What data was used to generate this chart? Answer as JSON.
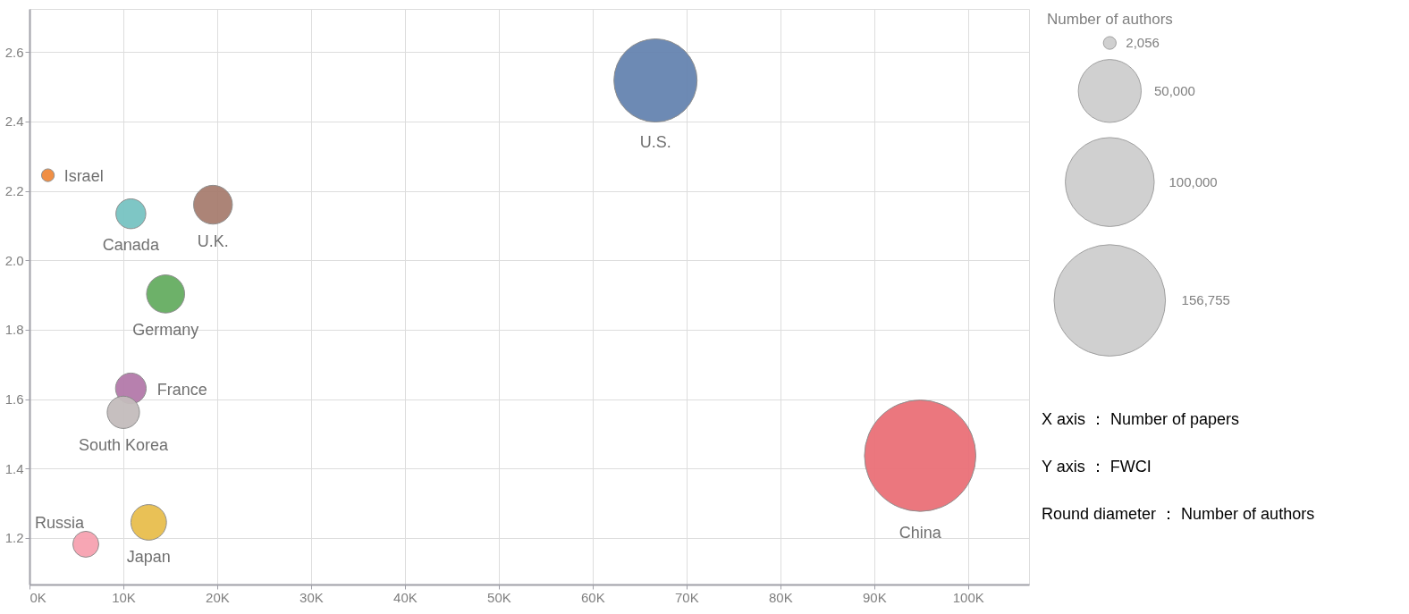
{
  "chart_data": {
    "type": "bubble",
    "legend_title": "Number of authors",
    "size_legend": [
      {
        "value": 2056,
        "label": "2,056"
      },
      {
        "value": 50000,
        "label": "50,000"
      },
      {
        "value": 100000,
        "label": "100,000"
      },
      {
        "value": 156755,
        "label": "156,755"
      }
    ],
    "annotations": [
      "X axis ： Number of papers",
      "Y axis ： FWCI",
      "Round diameter ： Number of authors"
    ],
    "xlim": [
      0,
      106500
    ],
    "ylim": [
      1.066,
      2.724
    ],
    "xticks": [
      {
        "value": 0,
        "label": "0K"
      },
      {
        "value": 10000,
        "label": "10K"
      },
      {
        "value": 20000,
        "label": "20K"
      },
      {
        "value": 30000,
        "label": "30K"
      },
      {
        "value": 40000,
        "label": "40K"
      },
      {
        "value": 50000,
        "label": "50K"
      },
      {
        "value": 60000,
        "label": "60K"
      },
      {
        "value": 70000,
        "label": "70K"
      },
      {
        "value": 80000,
        "label": "80K"
      },
      {
        "value": 90000,
        "label": "90K"
      },
      {
        "value": 100000,
        "label": "100K"
      }
    ],
    "yticks": [
      1.2,
      1.4,
      1.6,
      1.8,
      {
        "value": 2.0,
        "label": "2.0"
      },
      2.2,
      2.4,
      2.6
    ],
    "grid": true,
    "series": [
      {
        "name": "Israel",
        "color": "#f08a3c",
        "x": [
          1960
        ],
        "values": [
          2.245
        ],
        "sizes": [
          2056
        ]
      },
      {
        "name": "Canada",
        "color": "#78c4c2",
        "x": [
          10800
        ],
        "values": [
          2.134
        ],
        "sizes": [
          11300
        ]
      },
      {
        "name": "U.K.",
        "color": "#a87e70",
        "x": [
          19550
        ],
        "values": [
          2.16
        ],
        "sizes": [
          19000
        ]
      },
      {
        "name": "Germany",
        "color": "#66ad62",
        "x": [
          14500
        ],
        "values": [
          1.903
        ],
        "sizes": [
          18300
        ]
      },
      {
        "name": "France",
        "color": "#b47aaa",
        "x": [
          10800
        ],
        "values": [
          1.631
        ],
        "sizes": [
          11900
        ]
      },
      {
        "name": "South Korea",
        "color": "#c4bcbc",
        "x": [
          10000
        ],
        "values": [
          1.562
        ],
        "sizes": [
          13200
        ]
      },
      {
        "name": "Russia",
        "color": "#f7a2b0",
        "x": [
          6000
        ],
        "values": [
          1.182
        ],
        "sizes": [
          8500
        ]
      },
      {
        "name": "Japan",
        "color": "#e8be4e",
        "x": [
          12700
        ],
        "values": [
          1.245
        ],
        "sizes": [
          16000
        ]
      },
      {
        "name": "U.S.",
        "color": "#6684b0",
        "x": [
          66700
        ],
        "values": [
          2.518
        ],
        "sizes": [
          87400
        ]
      },
      {
        "name": "China",
        "color": "#ea7078",
        "x": [
          94900
        ],
        "values": [
          1.437
        ],
        "sizes": [
          156755
        ]
      }
    ]
  }
}
